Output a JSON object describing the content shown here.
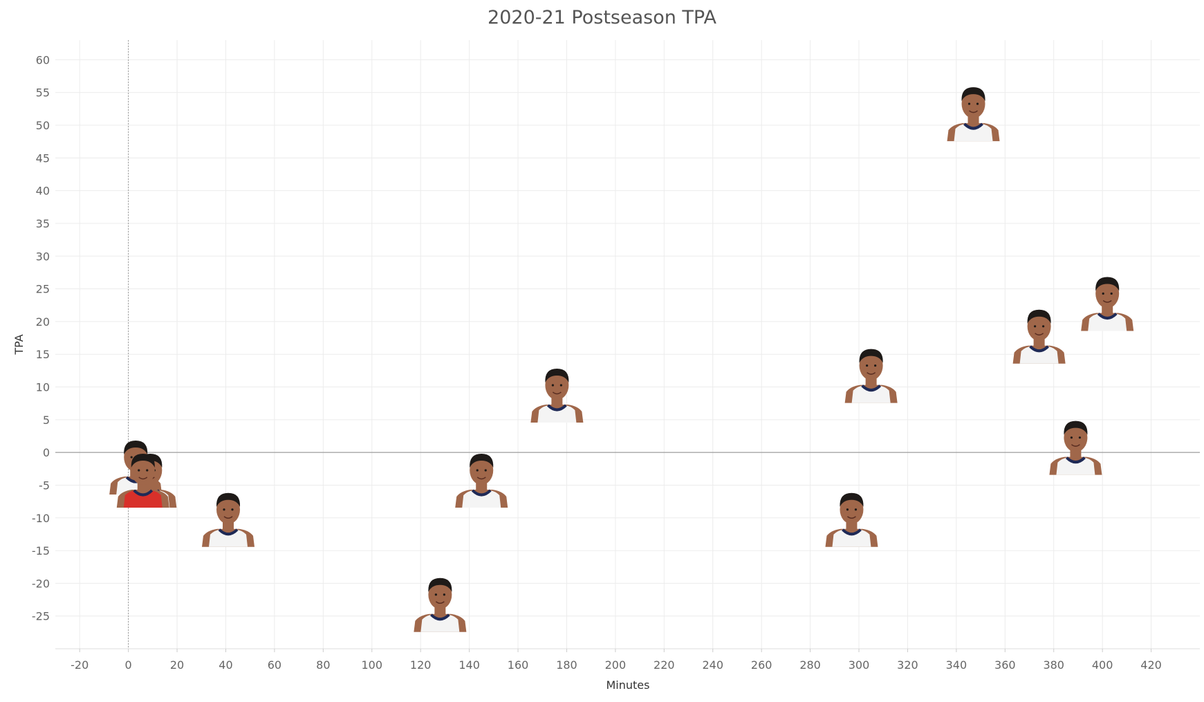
{
  "chart_data": {
    "type": "scatter",
    "title": "2020-21 Postseason TPA",
    "xlabel": "Minutes",
    "ylabel": "TPA",
    "xlim": [
      -30,
      440
    ],
    "ylim": [
      -30,
      63
    ],
    "xticks": [
      -20,
      0,
      20,
      40,
      60,
      80,
      100,
      120,
      140,
      160,
      180,
      200,
      220,
      240,
      260,
      280,
      300,
      320,
      340,
      360,
      380,
      400,
      420
    ],
    "yticks": [
      -25,
      -20,
      -15,
      -10,
      -5,
      0,
      5,
      10,
      15,
      20,
      25,
      30,
      35,
      40,
      45,
      50,
      55,
      60
    ],
    "grid": true,
    "reference_lines": {
      "x": 0,
      "y": 0
    },
    "marker": "player-headshot",
    "points": [
      {
        "x": 3,
        "y": -2,
        "jersey": "white"
      },
      {
        "x": 9,
        "y": -4,
        "jersey": "white"
      },
      {
        "x": 6,
        "y": -4,
        "jersey": "red"
      },
      {
        "x": 41,
        "y": -10,
        "jersey": "white"
      },
      {
        "x": 128,
        "y": -23,
        "jersey": "white"
      },
      {
        "x": 145,
        "y": -4,
        "jersey": "white"
      },
      {
        "x": 176,
        "y": 9,
        "jersey": "white"
      },
      {
        "x": 297,
        "y": -10,
        "jersey": "white"
      },
      {
        "x": 305,
        "y": 12,
        "jersey": "white"
      },
      {
        "x": 347,
        "y": 52,
        "jersey": "white"
      },
      {
        "x": 374,
        "y": 18,
        "jersey": "white"
      },
      {
        "x": 389,
        "y": 1,
        "jersey": "white"
      },
      {
        "x": 402,
        "y": 23,
        "jersey": "white"
      }
    ]
  },
  "colors": {
    "grid": "#ececec",
    "zero_line": "#888888",
    "skin": "#a0674a",
    "hair": "#1e1a18",
    "jersey_white": "#f4f4f4",
    "jersey_red": "#d8302a",
    "trim": "#1f2a56"
  }
}
